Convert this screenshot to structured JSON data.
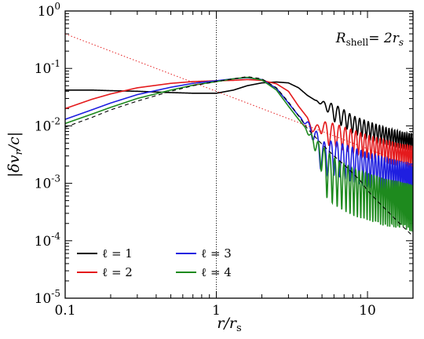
{
  "chart_data": {
    "type": "line",
    "title": "",
    "xlabel": "r/r",
    "xlabel_sub": "s",
    "ylabel": "|δv",
    "ylabel_sub": "r",
    "ylabel_tail": "/c|",
    "xscale": "log",
    "yscale": "log",
    "xlim": [
      0.1,
      20
    ],
    "ylim": [
      1e-05,
      1
    ],
    "x_ticks": [
      {
        "value": 0.1,
        "label": "0.1"
      },
      {
        "value": 1,
        "label": "1"
      },
      {
        "value": 10,
        "label": "10"
      }
    ],
    "y_ticks": [
      {
        "value": 1,
        "base": "10",
        "exp": "0"
      },
      {
        "value": 0.1,
        "base": "10",
        "exp": "-1"
      },
      {
        "value": 0.01,
        "base": "10",
        "exp": "-2"
      },
      {
        "value": 0.001,
        "base": "10",
        "exp": "-3"
      },
      {
        "value": 0.0001,
        "base": "10",
        "exp": "-4"
      },
      {
        "value": 1e-05,
        "base": "10",
        "exp": "-5"
      }
    ],
    "annotation": {
      "text": "R",
      "sub": "shell",
      "tail": "= 2r",
      "tail_sub": "s"
    },
    "vline_x": 1,
    "legend_placement": "bottom-left",
    "series": [
      {
        "name": "ℓ = 1",
        "color": "#000000",
        "style": "solid",
        "points": [
          [
            0.1,
            0.042
          ],
          [
            0.15,
            0.042
          ],
          [
            0.2,
            0.041
          ],
          [
            0.3,
            0.04
          ],
          [
            0.5,
            0.038
          ],
          [
            0.7,
            0.037
          ],
          [
            1.0,
            0.037
          ],
          [
            1.3,
            0.042
          ],
          [
            1.6,
            0.05
          ],
          [
            2.0,
            0.056
          ],
          [
            2.5,
            0.058
          ],
          [
            3.0,
            0.056
          ],
          [
            3.5,
            0.046
          ],
          [
            4.0,
            0.034
          ],
          [
            4.5,
            0.028
          ],
          [
            5.0,
            0.027
          ],
          [
            6.0,
            0.024
          ],
          [
            7.0,
            0.019
          ],
          [
            8.0,
            0.015
          ],
          [
            10.0,
            0.012
          ],
          [
            13.0,
            0.0095
          ],
          [
            16.0,
            0.0082
          ],
          [
            20.0,
            0.0072
          ]
        ],
        "osc_start": 4.5,
        "osc_depth": 0.5,
        "osc_cycles_per_unit": 1.6
      },
      {
        "name": "ℓ = 2",
        "color": "#e41a1c",
        "style": "solid",
        "points": [
          [
            0.1,
            0.02
          ],
          [
            0.15,
            0.029
          ],
          [
            0.2,
            0.036
          ],
          [
            0.3,
            0.046
          ],
          [
            0.5,
            0.055
          ],
          [
            0.7,
            0.059
          ],
          [
            1.0,
            0.061
          ],
          [
            1.3,
            0.062
          ],
          [
            1.6,
            0.064
          ],
          [
            2.0,
            0.062
          ],
          [
            2.5,
            0.054
          ],
          [
            3.0,
            0.04
          ],
          [
            3.5,
            0.022
          ],
          [
            4.0,
            0.014
          ],
          [
            4.3,
            0.009
          ],
          [
            5.0,
            0.012
          ],
          [
            6.0,
            0.011
          ],
          [
            8.0,
            0.0085
          ],
          [
            10.0,
            0.0069
          ],
          [
            13.0,
            0.0057
          ],
          [
            16.0,
            0.005
          ],
          [
            20.0,
            0.0045
          ]
        ],
        "osc_start": 4.0,
        "osc_depth": 0.6,
        "osc_cycles_per_unit": 1.6
      },
      {
        "name": "ℓ = 3",
        "color": "#1f1fe0",
        "style": "solid",
        "points": [
          [
            0.1,
            0.013
          ],
          [
            0.15,
            0.019
          ],
          [
            0.2,
            0.025
          ],
          [
            0.3,
            0.035
          ],
          [
            0.5,
            0.047
          ],
          [
            0.7,
            0.055
          ],
          [
            1.0,
            0.061
          ],
          [
            1.3,
            0.066
          ],
          [
            1.6,
            0.069
          ],
          [
            2.0,
            0.064
          ],
          [
            2.5,
            0.045
          ],
          [
            3.0,
            0.025
          ],
          [
            3.5,
            0.015
          ],
          [
            4.0,
            0.012
          ],
          [
            4.5,
            0.009
          ],
          [
            5.0,
            0.0052
          ],
          [
            6.0,
            0.0055
          ],
          [
            8.0,
            0.0042
          ],
          [
            10.0,
            0.0034
          ],
          [
            13.0,
            0.0028
          ],
          [
            16.0,
            0.0025
          ],
          [
            20.0,
            0.0022
          ]
        ],
        "osc_start": 3.5,
        "osc_depth": 0.75,
        "osc_cycles_per_unit": 1.8
      },
      {
        "name": "ℓ = 4",
        "color": "#1e8a1e",
        "style": "solid",
        "points": [
          [
            0.1,
            0.011
          ],
          [
            0.15,
            0.016
          ],
          [
            0.2,
            0.021
          ],
          [
            0.3,
            0.03
          ],
          [
            0.5,
            0.042
          ],
          [
            0.7,
            0.051
          ],
          [
            1.0,
            0.059
          ],
          [
            1.3,
            0.066
          ],
          [
            1.6,
            0.07
          ],
          [
            2.0,
            0.063
          ],
          [
            2.5,
            0.042
          ],
          [
            3.0,
            0.022
          ],
          [
            3.5,
            0.013
          ],
          [
            4.0,
            0.0085
          ],
          [
            5.0,
            0.0045
          ],
          [
            6.0,
            0.0028
          ],
          [
            7.0,
            0.0022
          ],
          [
            8.0,
            0.0018
          ],
          [
            10.0,
            0.0015
          ],
          [
            13.0,
            0.0012
          ],
          [
            16.0,
            0.0011
          ],
          [
            20.0,
            0.00095
          ]
        ],
        "osc_start": 3.8,
        "osc_depth": 0.85,
        "osc_cycles_per_unit": 2.2
      },
      {
        "name": "",
        "color": "#000000",
        "style": "dashed",
        "points": [
          [
            0.1,
            0.0095
          ],
          [
            0.15,
            0.014
          ],
          [
            0.2,
            0.019
          ],
          [
            0.3,
            0.027
          ],
          [
            0.5,
            0.04
          ],
          [
            0.7,
            0.05
          ],
          [
            1.0,
            0.059
          ],
          [
            1.3,
            0.066
          ],
          [
            1.6,
            0.072
          ],
          [
            2.0,
            0.066
          ],
          [
            2.5,
            0.046
          ],
          [
            3.0,
            0.026
          ],
          [
            3.5,
            0.015
          ],
          [
            4.0,
            0.009
          ],
          [
            5.0,
            0.0048
          ],
          [
            6.0,
            0.003
          ],
          [
            7.0,
            0.0021
          ],
          [
            8.0,
            0.0015
          ],
          [
            9.0,
            0.0011
          ],
          [
            10.0,
            0.00075
          ],
          [
            12.0,
            0.00045
          ],
          [
            14.0,
            0.0003
          ],
          [
            17.0,
            0.00018
          ],
          [
            20.0,
            0.00012
          ]
        ],
        "osc_start": 99,
        "osc_depth": 0,
        "osc_cycles_per_unit": 0
      },
      {
        "name": "",
        "color": "#e41a1c",
        "style": "dotted",
        "points": [
          [
            0.1,
            0.4
          ],
          [
            0.2,
            0.2
          ],
          [
            0.5,
            0.08
          ],
          [
            1.0,
            0.04
          ],
          [
            2.0,
            0.02
          ],
          [
            4.0,
            0.01
          ],
          [
            6.0,
            0.0067
          ],
          [
            10.0,
            0.004
          ],
          [
            20.0,
            0.002
          ]
        ],
        "osc_start": 99,
        "osc_depth": 0,
        "osc_cycles_per_unit": 0
      }
    ]
  }
}
